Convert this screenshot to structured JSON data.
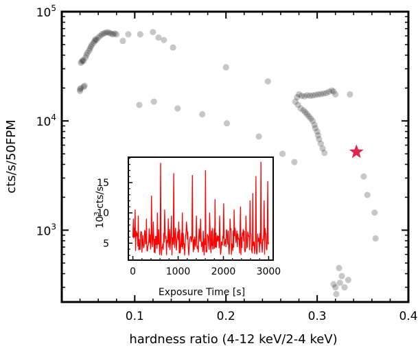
{
  "chart_data": [
    {
      "type": "scatter",
      "title": "",
      "xlabel": "hardness ratio (4-12 keV/2-4 keV)",
      "ylabel": "cts/s/50FPM",
      "xlim": [
        0.02,
        0.4
      ],
      "ylim": [
        220,
        100000
      ],
      "yscale": "log",
      "grid": false,
      "x_ticks": [
        {
          "value": 0.1,
          "label": "0.1"
        },
        {
          "value": 0.2,
          "label": "0.2"
        },
        {
          "value": 0.3,
          "label": "0.3"
        },
        {
          "value": 0.4,
          "label": "0.4"
        }
      ],
      "y_ticks": [
        {
          "value": 1000,
          "base": "10",
          "exp": "3"
        },
        {
          "value": 10000,
          "base": "10",
          "exp": "4"
        },
        {
          "value": 100000,
          "base": "10",
          "exp": "5"
        }
      ],
      "series": [
        {
          "color": "#000000",
          "opacity": 0.22,
          "points": [
            [
              0.04,
              18800
            ],
            [
              0.041,
              20000
            ],
            [
              0.04,
              19500
            ],
            [
              0.044,
              20500
            ],
            [
              0.045,
              21000
            ],
            [
              0.041,
              34000
            ],
            [
              0.042,
              35000
            ],
            [
              0.043,
              36000
            ],
            [
              0.044,
              35500
            ],
            [
              0.046,
              38000
            ],
            [
              0.047,
              40000
            ],
            [
              0.048,
              42000
            ],
            [
              0.05,
              44000
            ],
            [
              0.051,
              46000
            ],
            [
              0.052,
              48000
            ],
            [
              0.053,
              50000
            ],
            [
              0.055,
              52000
            ],
            [
              0.056,
              54000
            ],
            [
              0.057,
              56000
            ],
            [
              0.058,
              55000
            ],
            [
              0.06,
              58000
            ],
            [
              0.062,
              60000
            ],
            [
              0.064,
              62000
            ],
            [
              0.066,
              63000
            ],
            [
              0.068,
              64000
            ],
            [
              0.07,
              65000
            ],
            [
              0.072,
              64000
            ],
            [
              0.074,
              63000
            ],
            [
              0.076,
              62000
            ],
            [
              0.078,
              63000
            ],
            [
              0.08,
              62000
            ],
            [
              0.087,
              54000
            ],
            [
              0.093,
              62000
            ],
            [
              0.106,
              62000
            ],
            [
              0.12,
              65000
            ],
            [
              0.126,
              58000
            ],
            [
              0.132,
              55000
            ],
            [
              0.142,
              47000
            ],
            [
              0.2,
              31000
            ],
            [
              0.246,
              23000
            ],
            [
              0.105,
              14000
            ],
            [
              0.121,
              15000
            ],
            [
              0.147,
              13000
            ],
            [
              0.174,
              11500
            ],
            [
              0.201,
              9500
            ],
            [
              0.236,
              7200
            ],
            [
              0.262,
              5000
            ],
            [
              0.275,
              4200
            ],
            [
              0.278,
              16500
            ],
            [
              0.28,
              17500
            ],
            [
              0.283,
              17000
            ],
            [
              0.286,
              16800
            ],
            [
              0.289,
              17200
            ],
            [
              0.292,
              17000
            ],
            [
              0.295,
              17100
            ],
            [
              0.298,
              17300
            ],
            [
              0.301,
              17500
            ],
            [
              0.304,
              17600
            ],
            [
              0.307,
              17800
            ],
            [
              0.31,
              18000
            ],
            [
              0.313,
              18500
            ],
            [
              0.316,
              19000
            ],
            [
              0.318,
              18600
            ],
            [
              0.32,
              17500
            ],
            [
              0.336,
              17500
            ],
            [
              0.276,
              15000
            ],
            [
              0.279,
              14000
            ],
            [
              0.282,
              13000
            ],
            [
              0.285,
              12500
            ],
            [
              0.287,
              12000
            ],
            [
              0.289,
              11500
            ],
            [
              0.291,
              11000
            ],
            [
              0.293,
              10500
            ],
            [
              0.295,
              10000
            ],
            [
              0.297,
              9200
            ],
            [
              0.298,
              8600
            ],
            [
              0.3,
              8000
            ],
            [
              0.301,
              7400
            ],
            [
              0.302,
              6800
            ],
            [
              0.304,
              6200
            ],
            [
              0.306,
              5600
            ],
            [
              0.308,
              5100
            ],
            [
              0.351,
              3100
            ],
            [
              0.355,
              2100
            ],
            [
              0.363,
              1450
            ],
            [
              0.364,
              840
            ],
            [
              0.325,
              330
            ],
            [
              0.327,
              380
            ],
            [
              0.32,
              300
            ],
            [
              0.324,
              450
            ],
            [
              0.318,
              320
            ],
            [
              0.33,
              300
            ],
            [
              0.334,
              350
            ],
            [
              0.321,
              260
            ]
          ]
        }
      ],
      "highlight": {
        "x": 0.343,
        "y": 5200,
        "marker": "star",
        "color": "#e0264e"
      }
    },
    {
      "type": "line",
      "title": "",
      "xlabel": "Exposure Time [s]",
      "ylabel_base": "10",
      "ylabel_exp": "3",
      "ylabel_rest": " cts/s",
      "xlim": [
        -100,
        3100
      ],
      "ylim": [
        2.2,
        19.2
      ],
      "x_ticks": [
        0,
        1000,
        2000,
        3000
      ],
      "y_ticks": [
        5,
        10,
        15
      ],
      "series": [
        {
          "color": "#ff0000",
          "x_start": 0,
          "x_end": 3000,
          "points": 300,
          "baseline_range": [
            3.0,
            7.5
          ],
          "spikes": [
            [
              10,
              9.0
            ],
            [
              50,
              10.5
            ],
            [
              120,
              9.5
            ],
            [
              300,
              9.0
            ],
            [
              410,
              12.8
            ],
            [
              450,
              8.5
            ],
            [
              540,
              10.0
            ],
            [
              610,
              18.2
            ],
            [
              700,
              10.5
            ],
            [
              780,
              9.0
            ],
            [
              850,
              9.5
            ],
            [
              900,
              16.5
            ],
            [
              1010,
              8.5
            ],
            [
              1090,
              10.0
            ],
            [
              1180,
              8.5
            ],
            [
              1310,
              16.2
            ],
            [
              1400,
              9.5
            ],
            [
              1500,
              9.0
            ],
            [
              1610,
              17.0
            ],
            [
              1700,
              10.0
            ],
            [
              1820,
              12.2
            ],
            [
              1920,
              9.5
            ],
            [
              2010,
              11.5
            ],
            [
              2150,
              9.0
            ],
            [
              2240,
              10.5
            ],
            [
              2380,
              11.0
            ],
            [
              2500,
              9.5
            ],
            [
              2590,
              12.0
            ],
            [
              2650,
              13.2
            ],
            [
              2720,
              16.0
            ],
            [
              2830,
              18.4
            ],
            [
              2900,
              12.0
            ],
            [
              2980,
              15.2
            ]
          ]
        }
      ]
    }
  ]
}
